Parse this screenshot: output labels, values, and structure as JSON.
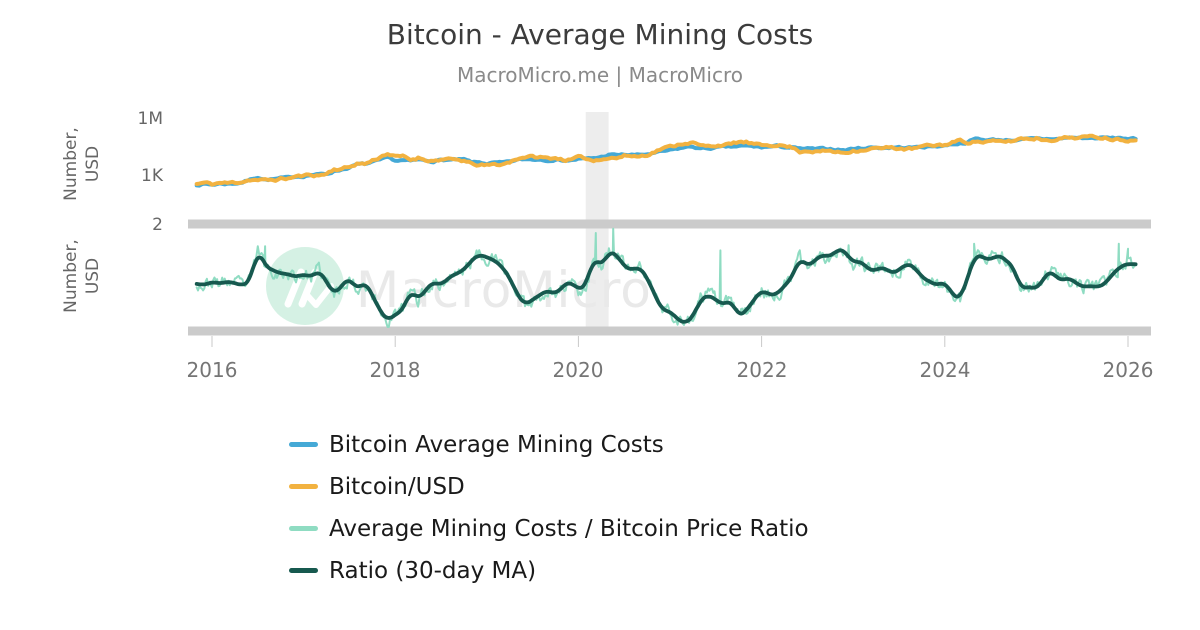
{
  "header": {
    "title": "Bitcoin - Average Mining Costs",
    "subtitle": "MacroMicro.me | MacroMicro"
  },
  "watermark": {
    "text": "MacroMicro"
  },
  "legend": {
    "items": [
      {
        "label": "Bitcoin Average Mining Costs",
        "color": "#45A9D6"
      },
      {
        "label": "Bitcoin/USD",
        "color": "#F2B240"
      },
      {
        "label": "Average Mining Costs / Bitcoin Price Ratio",
        "color": "#8FDCC2"
      },
      {
        "label": "Ratio (30-day MA)",
        "color": "#17594F"
      }
    ]
  },
  "chart_data": {
    "type": "line",
    "title": "Bitcoin - Average Mining Costs",
    "subtitle": "MacroMicro.me | MacroMicro",
    "x": {
      "unit": "year",
      "interval": "monthly",
      "start_year": 2015,
      "start_month": 11,
      "end_year": 2026,
      "end_month": 2,
      "tick_labels": [
        "2016",
        "2018",
        "2020",
        "2022",
        "2024",
        "2026"
      ]
    },
    "panels": [
      {
        "ylabel": "Number, USD",
        "ylabel_lines": [
          "Number,",
          "USD"
        ],
        "scale": "log",
        "yticks": [
          {
            "value": 1000000,
            "label": "1M"
          },
          {
            "value": 1000,
            "label": "1K"
          }
        ],
        "series": [
          "Bitcoin Average Mining Costs",
          "Bitcoin/USD"
        ]
      },
      {
        "ylabel": "Number, USD",
        "ylabel_lines": [
          "Number,",
          "USD"
        ],
        "scale": "log",
        "yticks": [
          {
            "value": 2,
            "label": "2"
          }
        ],
        "plot_lines": [
          2,
          0.5
        ],
        "series": [
          "Average Mining Costs / Bitcoin Price Ratio",
          "Ratio (30-day MA)"
        ]
      }
    ],
    "recession_band": {
      "from": 2020.08,
      "to": 2020.33
    },
    "series": {
      "mining_cost_usd": [
        352,
        387,
        350,
        402,
        395,
        417,
        478,
        637,
        905,
        661,
        671,
        735,
        782,
        960,
        1019,
        1190,
        1188,
        1283,
        1840,
        2232,
        2875,
        3995,
        4123,
        5176,
        6565,
        9120,
        6324,
        6695,
        5890,
        6930,
        6375,
        6080,
        6975,
        7020,
        6930,
        6930,
        5025,
        5049,
        4498,
        4813,
        4715,
        5350,
        6840,
        7560,
        7500,
        7680,
        7055,
        7320,
        6795,
        6831,
        7948,
        7740,
        8372,
        9913,
        13230,
        12339,
        13053,
        12815,
        12397,
        13800,
        15760,
        18850,
        21515,
        26216,
        32340,
        34650,
        27975,
        28000,
        31125,
        32970,
        32850,
        36780,
        37050,
        34650,
        32725,
        34560,
        36400,
        33930,
        31800,
        25870,
        26795,
        25063,
        26190,
        26650,
        24868,
        23170,
        27720,
        28938,
        31350,
        32175,
        31280,
        32004,
        32153,
        31116,
        31016,
        34650,
        35815,
        38025,
        40803,
        48960,
        53475,
        60640,
        91125,
        81471,
        80750,
        79610,
        79163,
        80730,
        81940,
        84060,
        86785,
        84350,
        90805,
        89490,
        104600,
        101745,
        101900,
        97380,
        100320,
        101200,
        95550,
        100050,
        93600,
        88500
      ],
      "btc_usd": [
        378,
        430,
        368,
        437,
        416,
        448,
        531,
        670,
        624,
        575,
        610,
        700,
        745,
        960,
        970,
        1190,
        1080,
        1350,
        2300,
        2480,
        2875,
        4700,
        4340,
        6470,
        10100,
        16000,
        10200,
        10300,
        6930,
        9240,
        7500,
        6400,
        7750,
        7020,
        6600,
        6300,
        4020,
        3740,
        3460,
        3850,
        4100,
        5350,
        8550,
        10800,
        10000,
        9600,
        8300,
        9150,
        7550,
        7190,
        9350,
        8600,
        6440,
        8620,
        9450,
        9140,
        11350,
        11650,
        10780,
        13800,
        19700,
        29000,
        33100,
        45200,
        58800,
        57750,
        37300,
        35000,
        41500,
        47100,
        43800,
        61300,
        57000,
        46200,
        38500,
        43200,
        45500,
        37700,
        31800,
        19900,
        23300,
        20050,
        19400,
        20500,
        17150,
        16550,
        23100,
        23150,
        28500,
        29250,
        27200,
        30480,
        29230,
        25930,
        26970,
        34650,
        37700,
        42250,
        42950,
        61200,
        71300,
        60640,
        67500,
        62670,
        64600,
        58970,
        63330,
        70200,
        96400,
        93400,
        102100,
        84350,
        82550,
        94200,
        104600,
        107100,
        115800,
        108200,
        114000,
        110000,
        91000,
        87000,
        78000,
        75000
      ],
      "ratio_definition": "mining_cost_usd / btc_usd",
      "ratio_ma_definition": "30-day moving average of ratio",
      "ratio_spikes": [
        [
          2016.58,
          1.5
        ],
        [
          2020.19,
          1.78
        ],
        [
          2020.38,
          1.88
        ],
        [
          2021.55,
          1.42
        ],
        [
          2022.95,
          1.52
        ],
        [
          2024.32,
          1.55
        ],
        [
          2025.9,
          1.55
        ],
        [
          2026.0,
          1.45
        ]
      ]
    },
    "colors": {
      "mining_cost": "#45A9D6",
      "btc_usd": "#F2B240",
      "ratio_raw": "#8FDCC2",
      "ratio_ma": "#17594F",
      "recession_band": "#EDEDED",
      "plot_line": "#CBCBCB",
      "axis_tick": "#C9C9C9",
      "tick_text": "#666666",
      "title_text": "#3C3C3C",
      "subtitle_text": "#8A8A8A",
      "legend_text": "#1A1A1A",
      "watermark_text": "#E9E9E9",
      "watermark_logo": "#D5F1E4"
    }
  }
}
